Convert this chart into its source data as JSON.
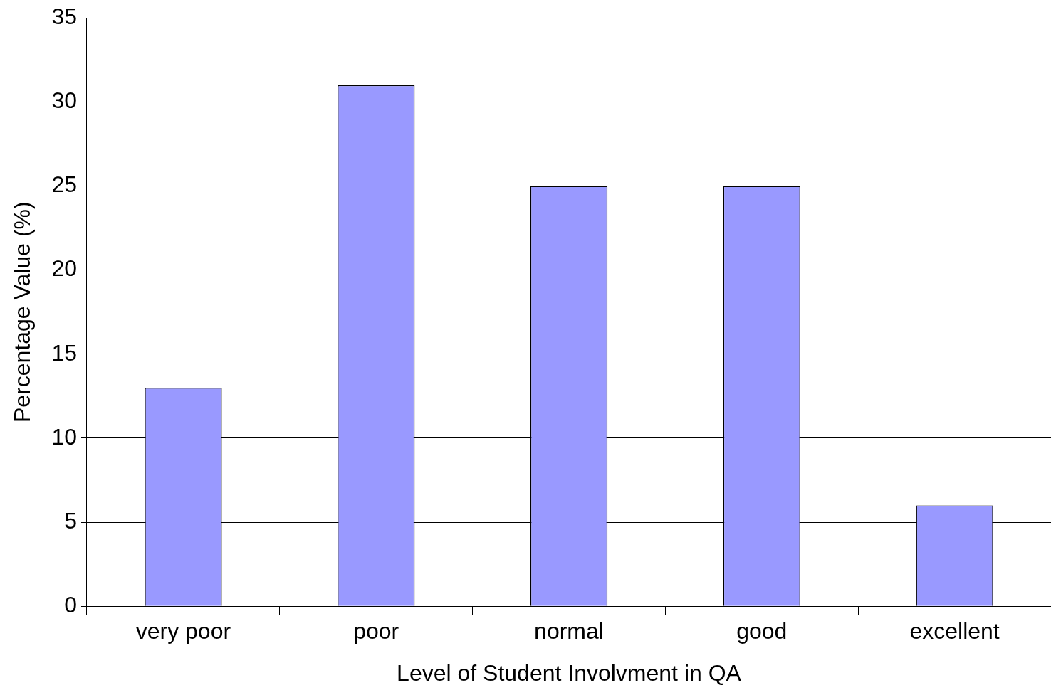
{
  "chart_data": {
    "type": "bar",
    "xlabel": "Level of Student Involvment in QA",
    "ylabel": "Percentage Value (%)",
    "categories": [
      "very poor",
      "poor",
      "normal",
      "good",
      "excellent"
    ],
    "values": [
      13,
      31,
      25,
      25,
      6
    ],
    "color": "#9999ff",
    "ylim": [
      0,
      35
    ],
    "yticks": [
      0,
      5,
      10,
      15,
      20,
      25,
      30,
      35
    ],
    "grid": "y"
  }
}
